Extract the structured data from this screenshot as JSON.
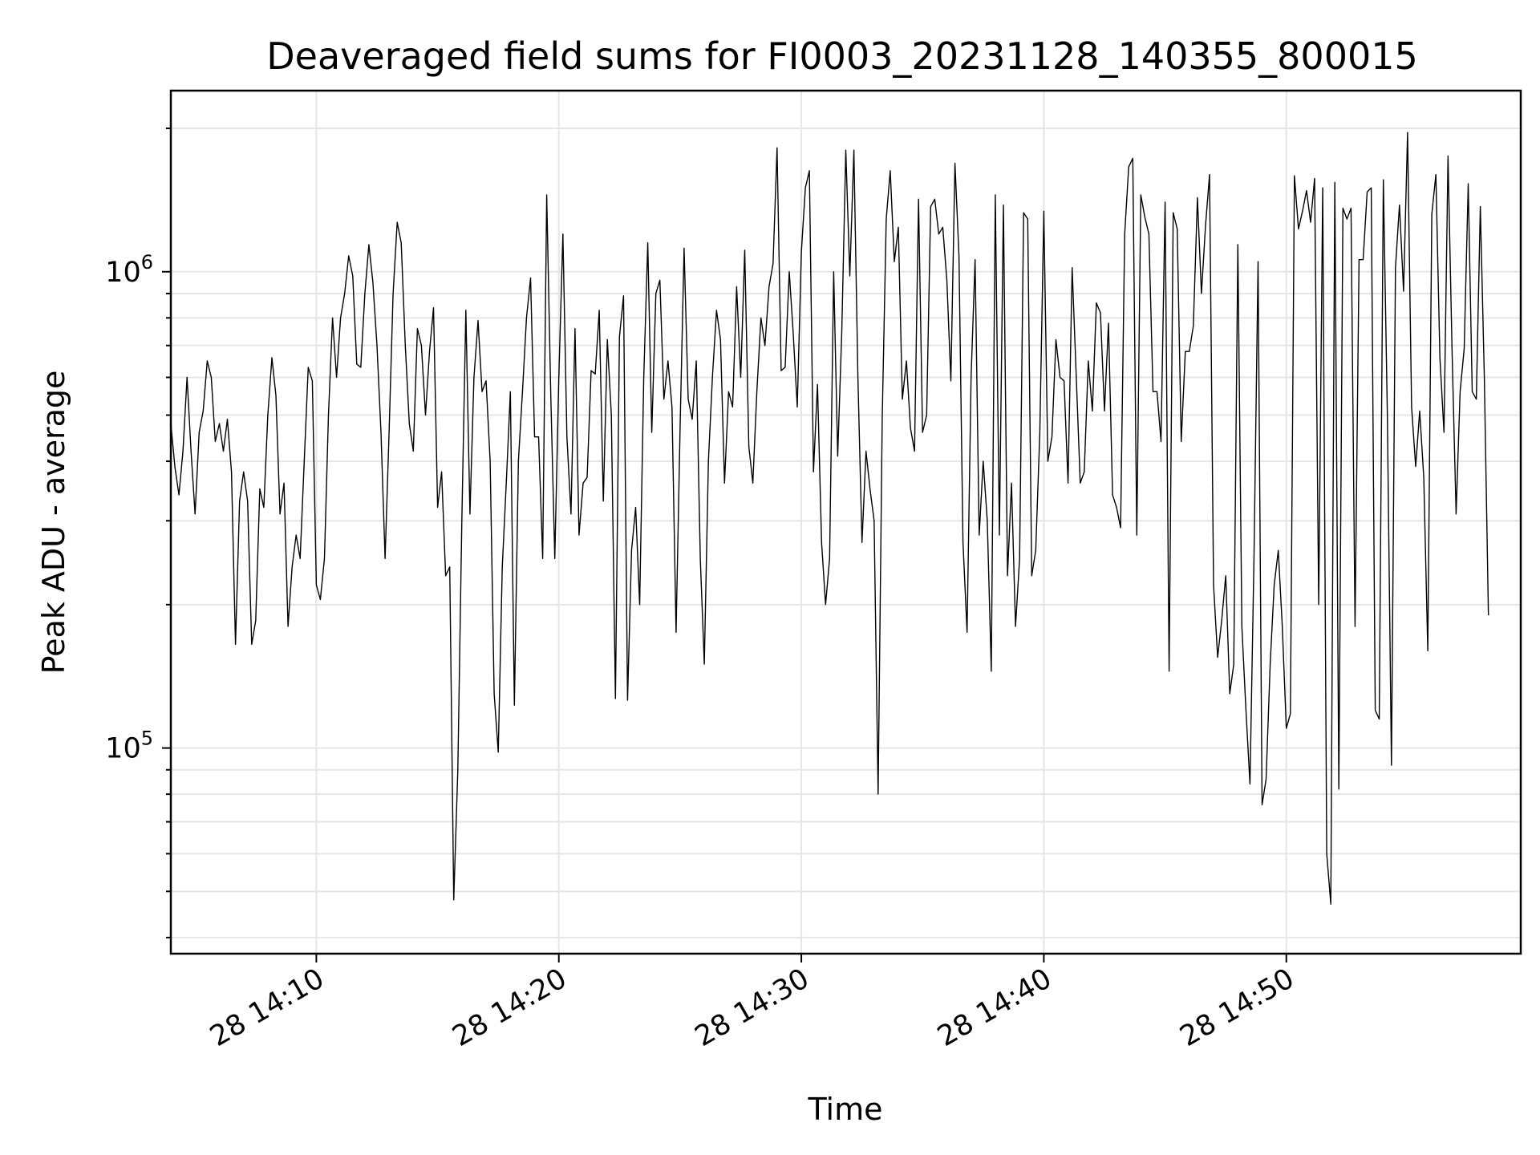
{
  "chart_data": {
    "type": "line",
    "title": "Deaveraged field sums for FI0003_20231128_140355_800015",
    "xlabel": "Time",
    "ylabel": "Peak ADU - average",
    "yscale": "log",
    "grid": true,
    "line_color": "#000000",
    "grid_color": "#e6e6e6",
    "xlim": [
      "2023-11-28T14:04:00",
      "2023-11-28T14:59:40"
    ],
    "ylim": [
      37000,
      2400000
    ],
    "x_ticks": [
      {
        "value": "2023-11-28T14:10:00",
        "label": "28 14:10"
      },
      {
        "value": "2023-11-28T14:20:00",
        "label": "28 14:20"
      },
      {
        "value": "2023-11-28T14:30:00",
        "label": "28 14:30"
      },
      {
        "value": "2023-11-28T14:40:00",
        "label": "28 14:40"
      },
      {
        "value": "2023-11-28T14:50:00",
        "label": "28 14:50"
      }
    ],
    "y_major_ticks": [
      {
        "value": 100000,
        "base": "10",
        "exp": "5"
      },
      {
        "value": 1000000,
        "base": "10",
        "exp": "6"
      }
    ],
    "y_minor_ticks": [
      40000,
      50000,
      60000,
      70000,
      80000,
      90000,
      200000,
      300000,
      400000,
      500000,
      600000,
      700000,
      800000,
      900000,
      2000000
    ],
    "series": [
      {
        "x_start": "2023-11-28T14:04:00",
        "interval_seconds": 10,
        "values": [
          480000,
          390000,
          340000,
          420000,
          600000,
          420000,
          310000,
          460000,
          510000,
          650000,
          600000,
          440000,
          480000,
          420000,
          490000,
          380000,
          165000,
          330000,
          380000,
          330000,
          165000,
          185000,
          350000,
          320000,
          500000,
          660000,
          550000,
          310000,
          360000,
          180000,
          240000,
          280000,
          250000,
          400000,
          630000,
          590000,
          220000,
          205000,
          250000,
          500000,
          800000,
          600000,
          800000,
          900000,
          1080000,
          980000,
          640000,
          630000,
          900000,
          1140000,
          950000,
          700000,
          460000,
          250000,
          460000,
          900000,
          1270000,
          1150000,
          700000,
          480000,
          420000,
          760000,
          700000,
          500000,
          680000,
          840000,
          320000,
          380000,
          230000,
          240000,
          48000,
          90000,
          300000,
          830000,
          310000,
          600000,
          790000,
          560000,
          590000,
          400000,
          130000,
          98000,
          240000,
          360000,
          560000,
          123000,
          400000,
          560000,
          800000,
          970000,
          450000,
          450000,
          250000,
          1450000,
          550000,
          250000,
          600000,
          1200000,
          450000,
          310000,
          760000,
          280000,
          360000,
          370000,
          620000,
          610000,
          830000,
          330000,
          720000,
          500000,
          127000,
          730000,
          890000,
          126000,
          260000,
          320000,
          200000,
          600000,
          1150000,
          460000,
          900000,
          960000,
          540000,
          650000,
          520000,
          175000,
          470000,
          1120000,
          540000,
          490000,
          650000,
          250000,
          150000,
          400000,
          600000,
          830000,
          720000,
          360000,
          560000,
          520000,
          930000,
          600000,
          1110000,
          430000,
          360000,
          560000,
          800000,
          700000,
          930000,
          1040000,
          1820000,
          620000,
          630000,
          1000000,
          740000,
          520000,
          1100000,
          1500000,
          1630000,
          380000,
          580000,
          270000,
          200000,
          250000,
          1000000,
          410000,
          750000,
          1800000,
          980000,
          1800000,
          600000,
          270000,
          420000,
          350000,
          300000,
          80000,
          490000,
          1290000,
          1630000,
          1050000,
          1240000,
          540000,
          650000,
          470000,
          420000,
          1420000,
          460000,
          500000,
          1370000,
          1420000,
          1200000,
          1240000,
          960000,
          590000,
          1690000,
          1080000,
          270000,
          175000,
          600000,
          1060000,
          280000,
          400000,
          300000,
          145000,
          1450000,
          280000,
          1380000,
          230000,
          360000,
          180000,
          250000,
          1330000,
          1290000,
          230000,
          260000,
          460000,
          1340000,
          400000,
          450000,
          720000,
          600000,
          590000,
          360000,
          1020000,
          610000,
          360000,
          380000,
          650000,
          510000,
          860000,
          820000,
          510000,
          780000,
          340000,
          320000,
          290000,
          1200000,
          1660000,
          1730000,
          280000,
          1450000,
          1300000,
          1200000,
          560000,
          560000,
          440000,
          1400000,
          145000,
          1330000,
          1230000,
          440000,
          680000,
          680000,
          770000,
          1430000,
          900000,
          1250000,
          1600000,
          220000,
          155000,
          185000,
          230000,
          130000,
          150000,
          1140000,
          180000,
          120000,
          84000,
          250000,
          1050000,
          76000,
          86000,
          150000,
          220000,
          260000,
          180000,
          110000,
          118000,
          1590000,
          1230000,
          1340000,
          1480000,
          1270000,
          1570000,
          200000,
          1500000,
          60000,
          47000,
          1540000,
          82000,
          1360000,
          1290000,
          1360000,
          180000,
          1060000,
          1060000,
          1470000,
          1500000,
          120000,
          115000,
          1560000,
          500000,
          92000,
          1020000,
          1380000,
          910000,
          1960000,
          520000,
          390000,
          510000,
          370000,
          160000,
          1320000,
          1600000,
          660000,
          460000,
          1750000,
          690000,
          310000,
          560000,
          690000,
          1530000,
          560000,
          540000,
          1370000,
          600000,
          190000
        ]
      }
    ]
  }
}
